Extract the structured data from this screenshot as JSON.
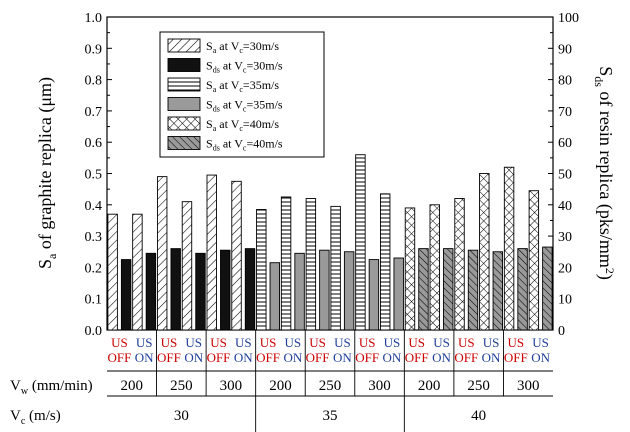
{
  "chart_data": {
    "type": "bar",
    "y_left": {
      "label_main": "S",
      "label_sub": "a",
      "label_rest": " of graphite replica (μm)",
      "ylim": [
        0,
        1.0
      ],
      "ticks": [
        "0.0",
        "0.1",
        "0.2",
        "0.3",
        "0.4",
        "0.5",
        "0.6",
        "0.7",
        "0.8",
        "0.9",
        "1.0"
      ]
    },
    "y_right": {
      "label_main": "S",
      "label_sub": "ds",
      "label_rest": " of resin replica (pks/mm",
      "label_sup": "2",
      "label_end": ")",
      "ylim": [
        0,
        100
      ],
      "ticks": [
        "0",
        "10",
        "20",
        "30",
        "40",
        "50",
        "60",
        "70",
        "80",
        "90",
        "100"
      ]
    },
    "legend": [
      {
        "pre": "S",
        "sub1": "a",
        "mid": " at V",
        "sub2": "c",
        "post": "=30m/s",
        "pattern": "diag"
      },
      {
        "pre": "S",
        "sub1": "ds",
        "mid": " at V",
        "sub2": "c",
        "post": "=30m/s",
        "pattern": "solid"
      },
      {
        "pre": "S",
        "sub1": "a",
        "mid": " at V",
        "sub2": "c",
        "post": "=35m/s",
        "pattern": "hlines"
      },
      {
        "pre": "S",
        "sub1": "ds",
        "mid": " at V",
        "sub2": "c",
        "post": "=35m/s",
        "pattern": "gray"
      },
      {
        "pre": "S",
        "sub1": "a",
        "mid": " at V",
        "sub2": "c",
        "post": "=40m/s",
        "pattern": "cross"
      },
      {
        "pre": "S",
        "sub1": "ds",
        "mid": " at V",
        "sub2": "c",
        "post": "=40m/s",
        "pattern": "backdiag"
      }
    ],
    "conditions": [
      {
        "line1": "US",
        "line2": "OFF",
        "color": "#cc0000"
      },
      {
        "line1": "US",
        "line2": "ON",
        "color": "#1f3f99"
      }
    ],
    "bar_groups": [
      {
        "vc": "30",
        "vw": "200",
        "us": "OFF",
        "sa": 0.37,
        "sds": 22.5
      },
      {
        "vc": "30",
        "vw": "200",
        "us": "ON",
        "sa": 0.37,
        "sds": 24.5
      },
      {
        "vc": "30",
        "vw": "250",
        "us": "OFF",
        "sa": 0.49,
        "sds": 26.0
      },
      {
        "vc": "30",
        "vw": "250",
        "us": "ON",
        "sa": 0.41,
        "sds": 24.5
      },
      {
        "vc": "30",
        "vw": "300",
        "us": "OFF",
        "sa": 0.495,
        "sds": 25.5
      },
      {
        "vc": "30",
        "vw": "300",
        "us": "ON",
        "sa": 0.475,
        "sds": 26.0
      },
      {
        "vc": "35",
        "vw": "200",
        "us": "OFF",
        "sa": 0.385,
        "sds": 21.5
      },
      {
        "vc": "35",
        "vw": "200",
        "us": "ON",
        "sa": 0.425,
        "sds": 24.5
      },
      {
        "vc": "35",
        "vw": "250",
        "us": "OFF",
        "sa": 0.42,
        "sds": 25.5
      },
      {
        "vc": "35",
        "vw": "250",
        "us": "ON",
        "sa": 0.395,
        "sds": 25.0
      },
      {
        "vc": "35",
        "vw": "300",
        "us": "OFF",
        "sa": 0.56,
        "sds": 22.5
      },
      {
        "vc": "35",
        "vw": "300",
        "us": "ON",
        "sa": 0.435,
        "sds": 23.0
      },
      {
        "vc": "40",
        "vw": "200",
        "us": "OFF",
        "sa": 0.39,
        "sds": 26.0
      },
      {
        "vc": "40",
        "vw": "200",
        "us": "ON",
        "sa": 0.4,
        "sds": 26.0
      },
      {
        "vc": "40",
        "vw": "250",
        "us": "OFF",
        "sa": 0.42,
        "sds": 25.5
      },
      {
        "vc": "40",
        "vw": "250",
        "us": "ON",
        "sa": 0.5,
        "sds": 25.0
      },
      {
        "vc": "40",
        "vw": "300",
        "us": "OFF",
        "sa": 0.52,
        "sds": 26.0
      },
      {
        "vc": "40",
        "vw": "300",
        "us": "ON",
        "sa": 0.445,
        "sds": 26.5
      }
    ],
    "vw_row": {
      "label_main": "V",
      "label_sub": "w",
      "label_rest": " (mm/min)",
      "values": [
        "200",
        "250",
        "300",
        "200",
        "250",
        "300",
        "200",
        "250",
        "300"
      ]
    },
    "vc_row": {
      "label_main": "V",
      "label_sub": "c",
      "label_rest": " (m/s)",
      "values": [
        "30",
        "35",
        "40"
      ]
    },
    "grid": false,
    "legend_position": "top-left"
  }
}
